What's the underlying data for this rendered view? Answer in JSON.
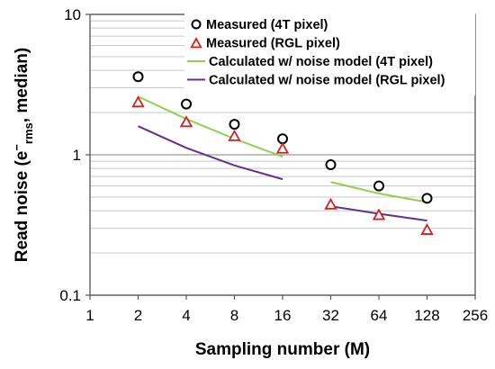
{
  "chart_data": {
    "type": "scatter",
    "x_scale": "log2",
    "y_scale": "log10",
    "xlim": [
      1,
      256
    ],
    "ylim": [
      0.1,
      10
    ],
    "x_ticks": [
      1,
      2,
      4,
      8,
      16,
      32,
      64,
      128,
      256
    ],
    "x_tick_labels": [
      "1",
      "2",
      "4",
      "8",
      "16",
      "32",
      "64",
      "128",
      "256"
    ],
    "y_ticks": [
      0.1,
      1,
      10
    ],
    "y_tick_labels": [
      "0.1",
      "1",
      "10"
    ],
    "xlabel": "Sampling number (M)",
    "ylabel_parts": {
      "pre": "Read noise (e",
      "sup": "−",
      "sub": "rms",
      "post": ", median)"
    },
    "grid": {
      "major": true,
      "minor": true,
      "axis": "y"
    },
    "legend": {
      "position": "top-right"
    },
    "series": [
      {
        "name": "Measured (4T pixel)",
        "kind": "marker",
        "marker": "circle",
        "color": "#000000",
        "points": [
          [
            2,
            3.6
          ],
          [
            4,
            2.3
          ],
          [
            8,
            1.65
          ],
          [
            16,
            1.3
          ],
          [
            32,
            0.85
          ],
          [
            64,
            0.6
          ],
          [
            128,
            0.49
          ]
        ]
      },
      {
        "name": "Measured (RGL pixel)",
        "kind": "marker",
        "marker": "triangle",
        "color": "#d42020",
        "points": [
          [
            2,
            2.35
          ],
          [
            4,
            1.7
          ],
          [
            8,
            1.35
          ],
          [
            16,
            1.1
          ],
          [
            32,
            0.44
          ],
          [
            64,
            0.37
          ],
          [
            128,
            0.29
          ]
        ]
      },
      {
        "name": "Calculated w/ noise model (4T pixel)",
        "kind": "line",
        "color": "#8fd14f",
        "segments": [
          [
            [
              2,
              2.6
            ],
            [
              4,
              1.8
            ],
            [
              8,
              1.3
            ],
            [
              16,
              0.97
            ]
          ],
          [
            [
              32,
              0.64
            ],
            [
              64,
              0.53
            ],
            [
              128,
              0.46
            ]
          ]
        ]
      },
      {
        "name": "Calculated w/ noise model (RGL pixel)",
        "kind": "line",
        "color": "#6a2c91",
        "segments": [
          [
            [
              2,
              1.6
            ],
            [
              4,
              1.12
            ],
            [
              8,
              0.84
            ],
            [
              16,
              0.67
            ]
          ],
          [
            [
              32,
              0.43
            ],
            [
              64,
              0.38
            ],
            [
              128,
              0.34
            ]
          ]
        ]
      }
    ]
  }
}
